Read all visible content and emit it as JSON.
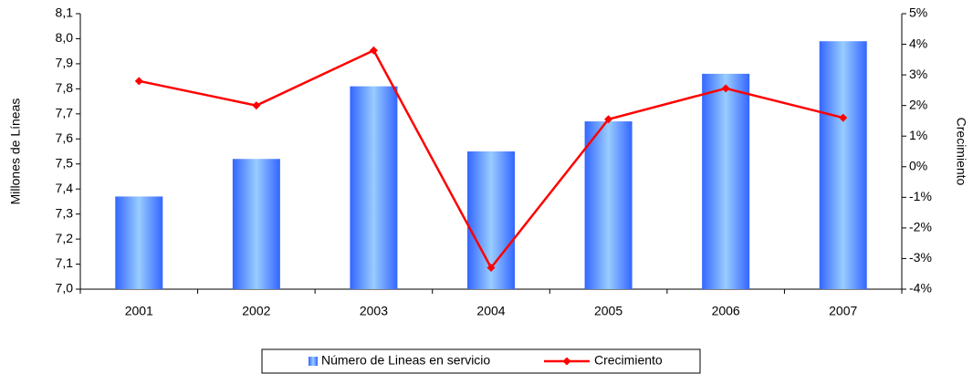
{
  "chart_data": {
    "type": "bar_line",
    "categories": [
      "2001",
      "2002",
      "2003",
      "2004",
      "2005",
      "2006",
      "2007"
    ],
    "ylabel": "Millones de Líneas",
    "y2label": "Crecimiento",
    "ylim": [
      7.0,
      8.1
    ],
    "yticks": [
      {
        "value": 7.0,
        "label": "7,0"
      },
      {
        "value": 7.1,
        "label": "7,1"
      },
      {
        "value": 7.2,
        "label": "7,2"
      },
      {
        "value": 7.3,
        "label": "7,3"
      },
      {
        "value": 7.4,
        "label": "7,4"
      },
      {
        "value": 7.5,
        "label": "7,5"
      },
      {
        "value": 7.6,
        "label": "7,6"
      },
      {
        "value": 7.7,
        "label": "7,7"
      },
      {
        "value": 7.8,
        "label": "7,8"
      },
      {
        "value": 7.9,
        "label": "7,9"
      },
      {
        "value": 8.0,
        "label": "8,0"
      },
      {
        "value": 8.1,
        "label": "8,1"
      }
    ],
    "y2lim": [
      -4,
      5
    ],
    "y2ticks": [
      {
        "value": -4,
        "label": "-4%"
      },
      {
        "value": -3,
        "label": "-3%"
      },
      {
        "value": -2,
        "label": "-2%"
      },
      {
        "value": -1,
        "label": "-1%"
      },
      {
        "value": 0,
        "label": "0%"
      },
      {
        "value": 1,
        "label": "1%"
      },
      {
        "value": 2,
        "label": "2%"
      },
      {
        "value": 3,
        "label": "3%"
      },
      {
        "value": 4,
        "label": "4%"
      },
      {
        "value": 5,
        "label": "5%"
      }
    ],
    "series": [
      {
        "name": "Número de Lineas en servicio",
        "kind": "bar",
        "color": "#3366ff",
        "values": [
          7.37,
          7.52,
          7.81,
          7.55,
          7.67,
          7.86,
          7.99
        ]
      },
      {
        "name": "Crecimiento",
        "kind": "line",
        "axis": "y2",
        "color": "#ff0000",
        "values": [
          2.8,
          2.0,
          3.8,
          -3.3,
          1.55,
          2.56,
          1.6
        ]
      }
    ],
    "legend": "bottom"
  }
}
